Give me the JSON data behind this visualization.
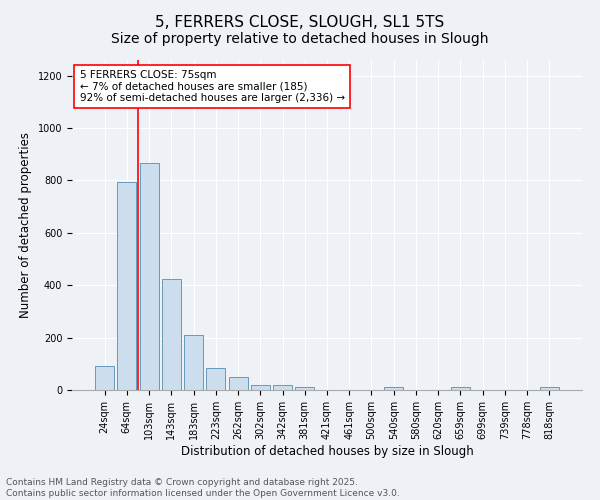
{
  "title": "5, FERRERS CLOSE, SLOUGH, SL1 5TS",
  "subtitle": "Size of property relative to detached houses in Slough",
  "xlabel": "Distribution of detached houses by size in Slough",
  "ylabel": "Number of detached properties",
  "categories": [
    "24sqm",
    "64sqm",
    "103sqm",
    "143sqm",
    "183sqm",
    "223sqm",
    "262sqm",
    "302sqm",
    "342sqm",
    "381sqm",
    "421sqm",
    "461sqm",
    "500sqm",
    "540sqm",
    "580sqm",
    "620sqm",
    "659sqm",
    "699sqm",
    "739sqm",
    "778sqm",
    "818sqm"
  ],
  "values": [
    90,
    795,
    865,
    425,
    210,
    85,
    50,
    20,
    20,
    12,
    0,
    0,
    0,
    10,
    0,
    0,
    10,
    0,
    0,
    0,
    10
  ],
  "bar_color": "#ccdded",
  "bar_edge_color": "#6699bb",
  "vline_x": 1.5,
  "vline_color": "red",
  "annotation_text": "5 FERRERS CLOSE: 75sqm\n← 7% of detached houses are smaller (185)\n92% of semi-detached houses are larger (2,336) →",
  "annotation_box_color": "white",
  "annotation_box_edge": "red",
  "ylim": [
    0,
    1260
  ],
  "yticks": [
    0,
    200,
    400,
    600,
    800,
    1000,
    1200
  ],
  "footer_text": "Contains HM Land Registry data © Crown copyright and database right 2025.\nContains public sector information licensed under the Open Government Licence v3.0.",
  "bg_color": "#eef2f7",
  "plot_bg_color": "#eef2f7",
  "title_fontsize": 11,
  "label_fontsize": 8.5,
  "tick_fontsize": 7,
  "footer_fontsize": 6.5,
  "annotation_fontsize": 7.5
}
